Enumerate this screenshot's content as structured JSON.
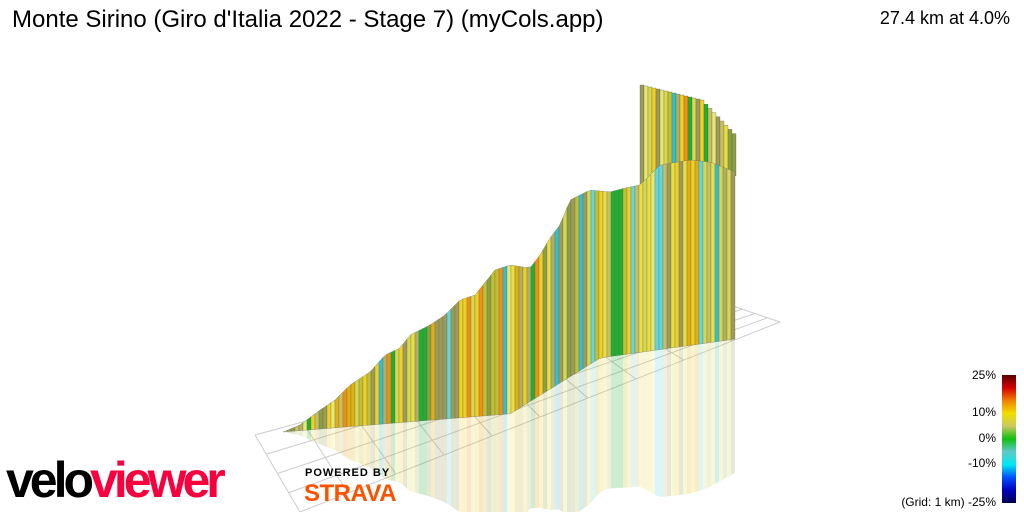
{
  "header": {
    "title": "Monte Sirino  (Giro d'Italia 2022 - Stage 7) (myCols.app)",
    "summary": "27.4 km at 4.0%"
  },
  "legend": {
    "labels": [
      "25%",
      "10%",
      "0%",
      "-10%",
      "(Grid: 1 km) -25%"
    ],
    "gradient_colors": [
      "#5a0000",
      "#d40000",
      "#f08000",
      "#f0e000",
      "#c8c860",
      "#10c010",
      "#60c8c8",
      "#00e8f0",
      "#0050ff",
      "#0000c0",
      "#000050"
    ]
  },
  "branding": {
    "logo_part1": "velo",
    "logo_part2": "viewer",
    "powered_by": "POWERED BY",
    "strava": "STRAVA",
    "velo_color": "#000000",
    "viewer_color": "#f7003d",
    "strava_color": "#fc5200"
  }
}
